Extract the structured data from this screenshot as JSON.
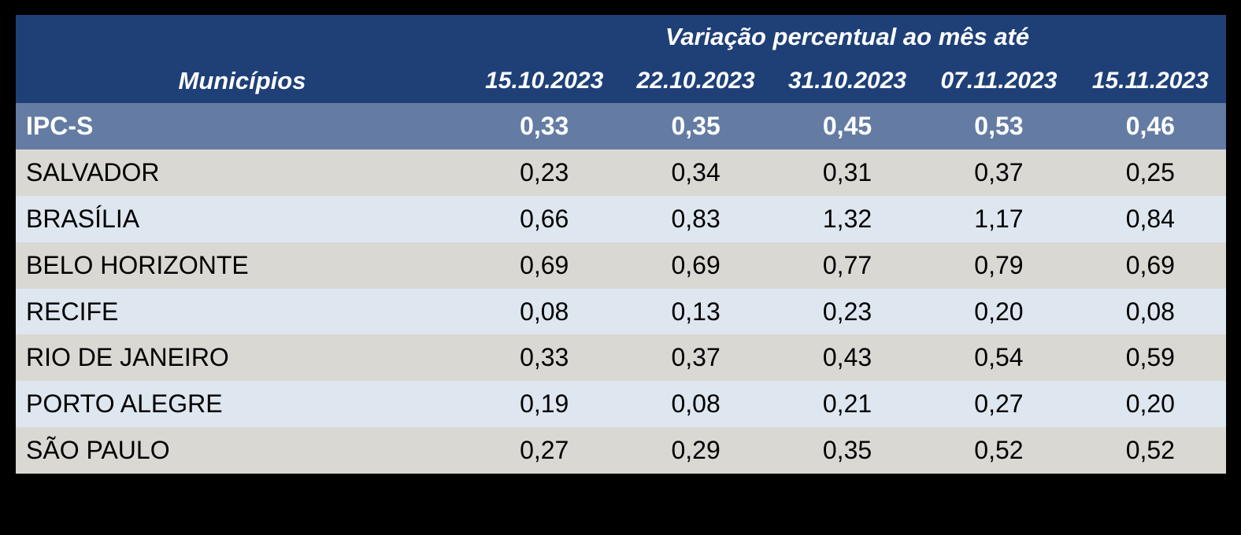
{
  "table": {
    "spanning_header": "Variação percentual ao mês até",
    "municipios_header": "Municípios",
    "date_headers": [
      "15.10.2023",
      "22.10.2023",
      "31.10.2023",
      "07.11.2023",
      "15.11.2023"
    ],
    "summary_row": {
      "label": "IPC-S",
      "values": [
        "0,33",
        "0,35",
        "0,45",
        "0,53",
        "0,46"
      ]
    },
    "rows": [
      {
        "label": "SALVADOR",
        "values": [
          "0,23",
          "0,34",
          "0,31",
          "0,37",
          "0,25"
        ]
      },
      {
        "label": "BRASÍLIA",
        "values": [
          "0,66",
          "0,83",
          "1,32",
          "1,17",
          "0,84"
        ]
      },
      {
        "label": "BELO HORIZONTE",
        "values": [
          "0,69",
          "0,69",
          "0,77",
          "0,79",
          "0,69"
        ]
      },
      {
        "label": "RECIFE",
        "values": [
          "0,08",
          "0,13",
          "0,23",
          "0,20",
          "0,08"
        ]
      },
      {
        "label": "RIO DE JANEIRO",
        "values": [
          "0,33",
          "0,37",
          "0,43",
          "0,54",
          "0,59"
        ]
      },
      {
        "label": "PORTO ALEGRE",
        "values": [
          "0,19",
          "0,08",
          "0,21",
          "0,27",
          "0,20"
        ]
      },
      {
        "label": "SÃO PAULO",
        "values": [
          "0,27",
          "0,29",
          "0,35",
          "0,52",
          "0,52"
        ]
      }
    ],
    "colors": {
      "page_background": "#000000",
      "header_bg": "#1F4077",
      "summary_bg": "#647CA4",
      "row_gray": "#D9D8D3",
      "row_blue": "#DEE7F0",
      "header_text": "#FFFFFF",
      "body_text": "#000000"
    }
  },
  "chart_data": {
    "type": "table",
    "title": "Variação percentual ao mês até",
    "columns": [
      "Municípios",
      "15.10.2023",
      "22.10.2023",
      "31.10.2023",
      "07.11.2023",
      "15.11.2023"
    ],
    "decimal_separator": ",",
    "rows": [
      [
        "IPC-S",
        0.33,
        0.35,
        0.45,
        0.53,
        0.46
      ],
      [
        "SALVADOR",
        0.23,
        0.34,
        0.31,
        0.37,
        0.25
      ],
      [
        "BRASÍLIA",
        0.66,
        0.83,
        1.32,
        1.17,
        0.84
      ],
      [
        "BELO HORIZONTE",
        0.69,
        0.69,
        0.77,
        0.79,
        0.69
      ],
      [
        "RECIFE",
        0.08,
        0.13,
        0.23,
        0.2,
        0.08
      ],
      [
        "RIO DE JANEIRO",
        0.33,
        0.37,
        0.43,
        0.54,
        0.59
      ],
      [
        "PORTO ALEGRE",
        0.19,
        0.08,
        0.21,
        0.27,
        0.2
      ],
      [
        "SÃO PAULO",
        0.27,
        0.29,
        0.35,
        0.52,
        0.52
      ]
    ]
  }
}
